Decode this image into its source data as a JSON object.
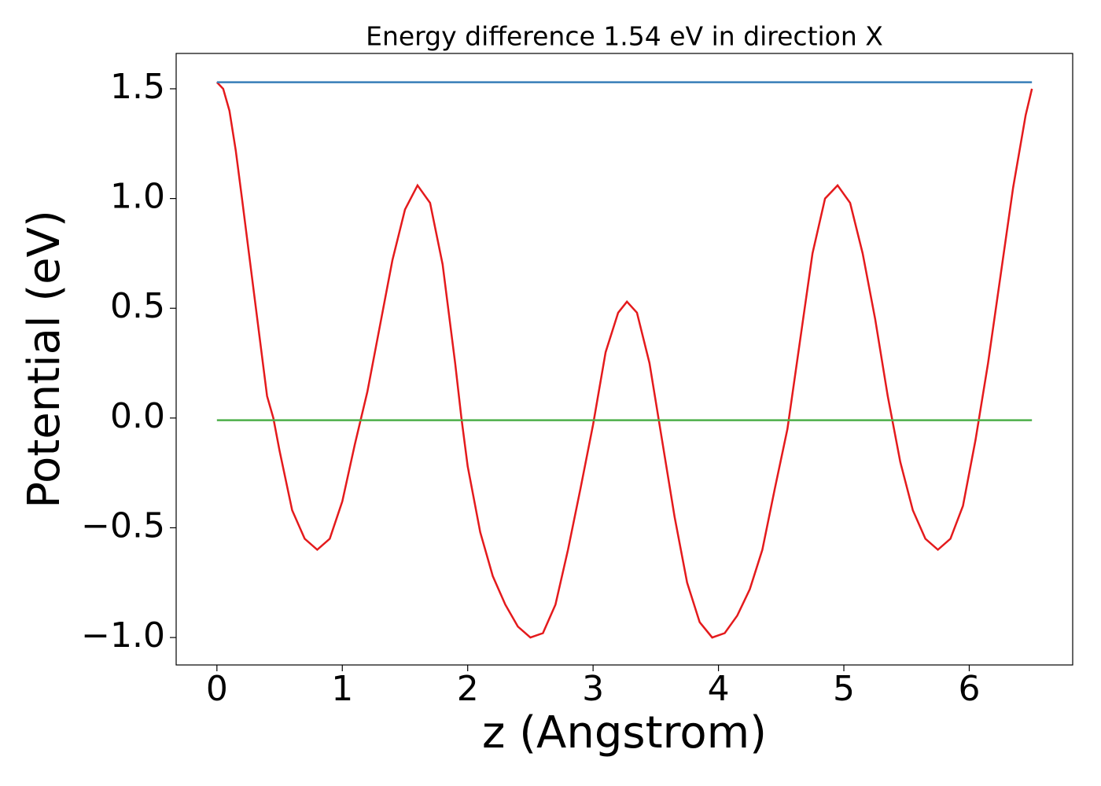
{
  "chart_data": {
    "type": "line",
    "title": "Energy difference 1.54 eV in direction X",
    "xlabel": "z (Angstrom)",
    "ylabel": "Potential (eV)",
    "xlim": [
      -0.325,
      6.825
    ],
    "ylim": [
      -1.125,
      1.661
    ],
    "xticks": [
      0,
      1,
      2,
      3,
      4,
      5,
      6
    ],
    "yticks": [
      {
        "value": -1.0,
        "label": "−1.0"
      },
      {
        "value": -0.5,
        "label": "−0.5"
      },
      {
        "value": 0.0,
        "label": "0.0"
      },
      {
        "value": 0.5,
        "label": "0.5"
      },
      {
        "value": 1.0,
        "label": "1.0"
      },
      {
        "value": 1.5,
        "label": "1.5"
      }
    ],
    "series": [
      {
        "color": "#e41a1c",
        "x": [
          0,
          0.05,
          0.1,
          0.15,
          0.2,
          0.3,
          0.4,
          0.45,
          0.5,
          0.6,
          0.7,
          0.8,
          0.9,
          1.0,
          1.1,
          1.15,
          1.2,
          1.3,
          1.4,
          1.5,
          1.6,
          1.7,
          1.8,
          1.9,
          1.95,
          2.0,
          2.1,
          2.2,
          2.3,
          2.4,
          2.5,
          2.6,
          2.7,
          2.8,
          2.9,
          3.0,
          3.1,
          3.2,
          3.27,
          3.35,
          3.45,
          3.55,
          3.65,
          3.75,
          3.85,
          3.95,
          4.05,
          4.15,
          4.25,
          4.35,
          4.45,
          4.55,
          4.65,
          4.75,
          4.85,
          4.95,
          5.05,
          5.15,
          5.25,
          5.35,
          5.45,
          5.55,
          5.65,
          5.75,
          5.85,
          5.95,
          6.05,
          6.15,
          6.25,
          6.35,
          6.45,
          6.5
        ],
        "values": [
          1.53,
          1.5,
          1.4,
          1.22,
          1.0,
          0.55,
          0.1,
          0.0,
          -0.15,
          -0.42,
          -0.55,
          -0.6,
          -0.55,
          -0.38,
          -0.12,
          0.0,
          0.12,
          0.42,
          0.72,
          0.95,
          1.06,
          0.98,
          0.7,
          0.25,
          0.0,
          -0.22,
          -0.52,
          -0.72,
          -0.85,
          -0.95,
          -1.0,
          -0.98,
          -0.85,
          -0.6,
          -0.32,
          -0.03,
          0.3,
          0.48,
          0.53,
          0.48,
          0.25,
          -0.1,
          -0.45,
          -0.75,
          -0.93,
          -1.0,
          -0.98,
          -0.9,
          -0.78,
          -0.6,
          -0.32,
          -0.05,
          0.35,
          0.75,
          1.0,
          1.06,
          0.98,
          0.75,
          0.45,
          0.1,
          -0.2,
          -0.42,
          -0.55,
          -0.6,
          -0.55,
          -0.4,
          -0.1,
          0.25,
          0.65,
          1.05,
          1.38,
          1.5
        ]
      },
      {
        "color": "#377eb8",
        "x": [
          0,
          6.5
        ],
        "values": [
          1.53,
          1.53
        ]
      },
      {
        "color": "#4daf4a",
        "x": [
          0,
          6.5
        ],
        "values": [
          -0.01,
          -0.01
        ]
      }
    ]
  }
}
